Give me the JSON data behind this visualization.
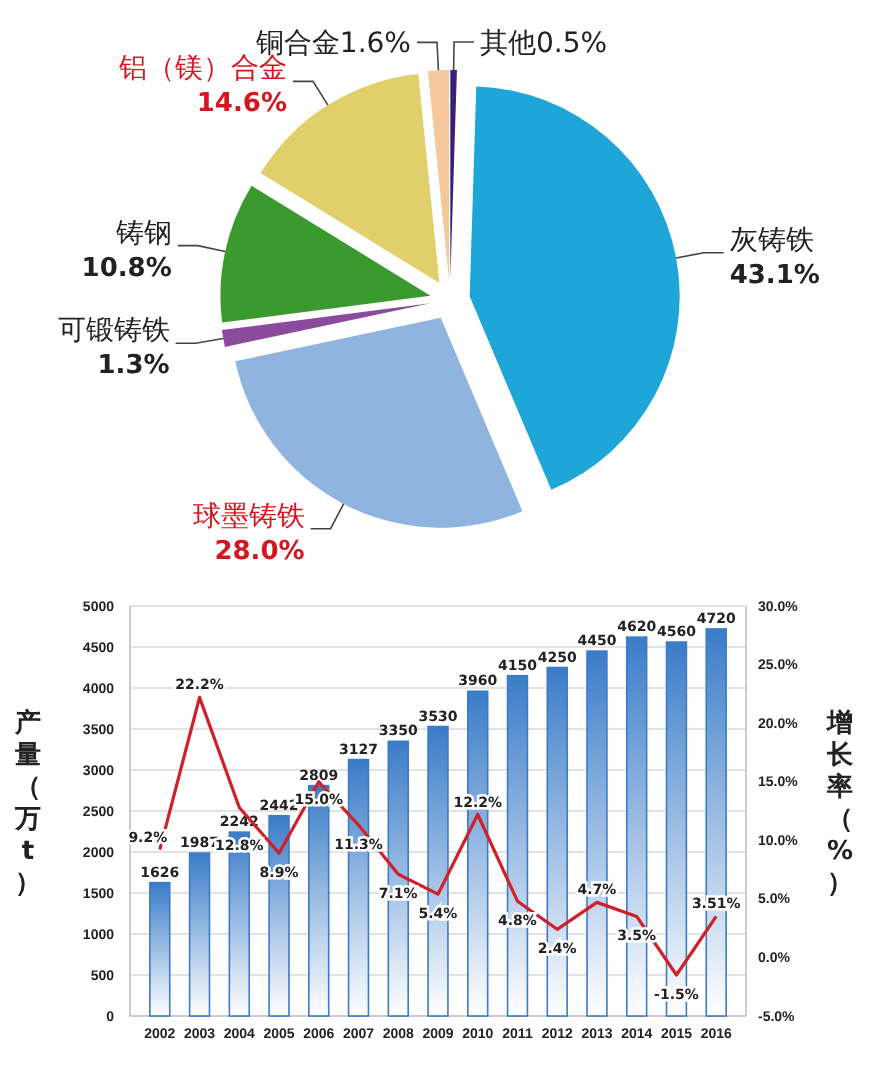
{
  "chart_data": [
    {
      "type": "pie",
      "categories": [
        "其他",
        "灰铸铁",
        "球墨铸铁",
        "可锻铸铁",
        "铸钢",
        "铝（镁）合金",
        "铜合金"
      ],
      "values": [
        0.5,
        43.1,
        28.0,
        1.3,
        10.8,
        14.6,
        1.6
      ],
      "colors": [
        "#3a1f7a",
        "#1ea6d8",
        "#8fb4e0",
        "#8b4a9c",
        "#3a9a2e",
        "#e0cf6a",
        "#f4c89a"
      ],
      "value_labels": [
        "0.5%",
        "43.1%",
        "28.0%",
        "1.3%",
        "10.8%",
        "14.6%",
        "1.6%"
      ]
    },
    {
      "type": "bar",
      "categories": [
        "2002",
        "2003",
        "2004",
        "2005",
        "2006",
        "2007",
        "2008",
        "2009",
        "2010",
        "2011",
        "2012",
        "2013",
        "2014",
        "2015",
        "2016"
      ],
      "ylabel": "产量（万t）",
      "y2label": "增长率（%）",
      "ylim": [
        0,
        5000
      ],
      "yticks": [
        0,
        500,
        1000,
        1500,
        2000,
        2500,
        3000,
        3500,
        4000,
        4500,
        5000
      ],
      "y2lim": [
        -5,
        30
      ],
      "y2ticks": [
        {
          "value": -5,
          "label": "-5.0%"
        },
        {
          "value": 0,
          "label": "0.0%"
        },
        {
          "value": 5,
          "label": "5.0%"
        },
        {
          "value": 10,
          "label": "10.0%"
        },
        {
          "value": 15,
          "label": "15.0%"
        },
        {
          "value": 20,
          "label": "20.0%"
        },
        {
          "value": 25,
          "label": "25.0%"
        },
        {
          "value": 30,
          "label": "30.0%"
        }
      ],
      "grid": "y",
      "series": [
        {
          "type": "bar",
          "color": "#3a7cc8",
          "values": [
            1626,
            1987,
            2242,
            2442,
            2809,
            3127,
            3350,
            3530,
            3960,
            4150,
            4250,
            4450,
            4620,
            4560,
            4720
          ],
          "data_labels": true
        },
        {
          "type": "line",
          "axis": "y2",
          "color": "#d0202a",
          "values": [
            9.2,
            22.2,
            12.8,
            8.9,
            15.0,
            11.3,
            7.1,
            5.4,
            12.2,
            4.8,
            2.4,
            4.7,
            3.5,
            -1.5,
            3.51
          ],
          "value_labels": [
            "9.2%",
            "22.2%",
            "12.8%",
            "8.9%",
            "15.0%",
            "11.3%",
            "7.1%",
            "5.4%",
            "12.2%",
            "4.8%",
            "2.4%",
            "4.7%",
            "3.5%",
            "-1.5%",
            "3.51%"
          ]
        }
      ]
    }
  ]
}
